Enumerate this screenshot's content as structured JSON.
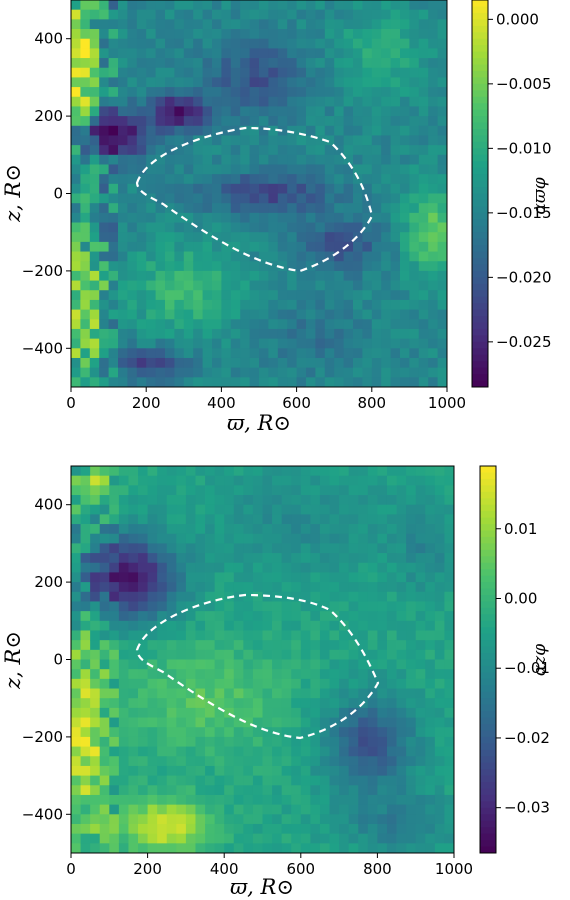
{
  "colormap": [
    "#440154",
    "#46327e",
    "#365c8d",
    "#277f8e",
    "#1fa187",
    "#4ac16d",
    "#a0da39",
    "#fde725"
  ],
  "contour_color": "#ffffff",
  "chart_data": [
    {
      "type": "heatmap",
      "xlabel": "ϖ, R⊙",
      "ylabel": "z, R⊙",
      "cbar_label": "αϖφ",
      "xlim": [
        0,
        1000
      ],
      "ylim": [
        -500,
        500
      ],
      "xticks": [
        "0",
        "200",
        "400",
        "600",
        "800",
        "1000"
      ],
      "yticks": [
        "400",
        "200",
        "0",
        "−200",
        "−400"
      ],
      "clim": [
        -0.0285,
        0.0015
      ],
      "cbar_ticks": [
        "0.000",
        "−0.005",
        "−0.010",
        "−0.015",
        "−0.020",
        "−0.025"
      ],
      "grid": "40x40",
      "contour": "dashed white",
      "features": [
        {
          "x": 20,
          "y": 320,
          "rx": 50,
          "ry": 180,
          "v": 0.001
        },
        {
          "x": 30,
          "y": -300,
          "rx": 55,
          "ry": 170,
          "v": -0.002
        },
        {
          "x": 120,
          "y": 150,
          "rx": 90,
          "ry": 60,
          "v": -0.028
        },
        {
          "x": 290,
          "y": 210,
          "rx": 80,
          "ry": 45,
          "v": -0.028
        },
        {
          "x": 500,
          "y": 300,
          "rx": 140,
          "ry": 90,
          "v": -0.021
        },
        {
          "x": 520,
          "y": 0,
          "rx": 170,
          "ry": 55,
          "v": -0.022
        },
        {
          "x": 720,
          "y": -130,
          "rx": 110,
          "ry": 70,
          "v": -0.021
        },
        {
          "x": 300,
          "y": -250,
          "rx": 140,
          "ry": 110,
          "v": -0.008
        },
        {
          "x": 210,
          "y": -440,
          "rx": 90,
          "ry": 40,
          "v": -0.023
        },
        {
          "x": 960,
          "y": -100,
          "rx": 70,
          "ry": 120,
          "v": -0.006
        },
        {
          "x": 820,
          "y": 360,
          "rx": 120,
          "ry": 110,
          "v": -0.01
        },
        {
          "x": 650,
          "y": -380,
          "rx": 140,
          "ry": 90,
          "v": -0.017
        }
      ],
      "base_value": -0.0145
    },
    {
      "type": "heatmap",
      "xlabel": "ϖ, R⊙",
      "ylabel": "z, R⊙",
      "cbar_label": "αzφ",
      "xlim": [
        0,
        1000
      ],
      "ylim": [
        -500,
        500
      ],
      "xticks": [
        "0",
        "200",
        "400",
        "600",
        "800",
        "1000"
      ],
      "yticks": [
        "400",
        "200",
        "0",
        "−200",
        "−400"
      ],
      "clim": [
        -0.0365,
        0.019
      ],
      "cbar_ticks": [
        "0.01",
        "0.00",
        "−0.01",
        "−0.02",
        "−0.03"
      ],
      "grid": "40x40",
      "contour": "dashed white",
      "features": [
        {
          "x": 150,
          "y": 210,
          "rx": 130,
          "ry": 110,
          "v": -0.034
        },
        {
          "x": 60,
          "y": 440,
          "rx": 50,
          "ry": 60,
          "v": 0.01
        },
        {
          "x": 40,
          "y": -200,
          "rx": 70,
          "ry": 260,
          "v": 0.012
        },
        {
          "x": 250,
          "y": -430,
          "rx": 110,
          "ry": 70,
          "v": 0.016
        },
        {
          "x": 350,
          "y": -100,
          "rx": 220,
          "ry": 140,
          "v": 0.004
        },
        {
          "x": 600,
          "y": 350,
          "rx": 250,
          "ry": 150,
          "v": -0.01
        },
        {
          "x": 780,
          "y": -220,
          "rx": 120,
          "ry": 130,
          "v": -0.022
        },
        {
          "x": 930,
          "y": 300,
          "rx": 80,
          "ry": 120,
          "v": -0.012
        },
        {
          "x": 850,
          "y": -420,
          "rx": 150,
          "ry": 80,
          "v": -0.014
        }
      ],
      "base_value": -0.004
    }
  ]
}
